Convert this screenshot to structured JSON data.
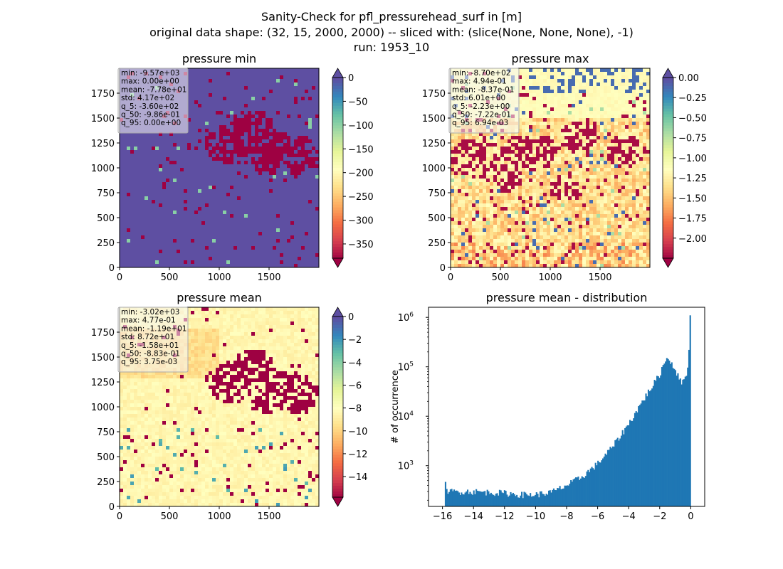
{
  "suptitle": {
    "line1": "Sanity-Check for pfl_pressurehead_surf in [m]",
    "line2": "original data shape: (32, 15, 2000, 2000) -- sliced with: (slice(None, None, None), -1)",
    "line3": "run: 1953_10"
  },
  "chart_data": [
    {
      "type": "heatmap",
      "title": "pressure min",
      "xlabel": "",
      "ylabel": "",
      "xlim": [
        0,
        2000
      ],
      "ylim": [
        0,
        2000
      ],
      "x_ticks": [
        "0",
        "500",
        "1000",
        "1500"
      ],
      "y_ticks": [
        "0",
        "250",
        "500",
        "750",
        "1000",
        "1250",
        "1500",
        "1750"
      ],
      "colormap": "Spectral",
      "colorbar": {
        "vmin": -380,
        "vmax": 0,
        "extend": "both",
        "ticks": [
          "0",
          "−50",
          "−100",
          "−150",
          "−200",
          "−250",
          "−300",
          "−350"
        ]
      },
      "stats": [
        "min: -9.57e+03",
        "max: 0.00e+00",
        "mean: -7.78e+01",
        "std: 4.17e+02",
        "q_5: -3.60e+02",
        "q_50: -9.86e-01",
        "q_95: 0.00e+00"
      ],
      "dominant_value": 0
    },
    {
      "type": "heatmap",
      "title": "pressure max",
      "xlabel": "",
      "ylabel": "",
      "xlim": [
        0,
        2000
      ],
      "ylim": [
        0,
        2000
      ],
      "x_ticks": [
        "0",
        "500",
        "1000",
        "1500"
      ],
      "y_ticks": [
        "0",
        "250",
        "500",
        "750",
        "1000",
        "1250",
        "1500",
        "1750"
      ],
      "colormap": "Spectral",
      "colorbar": {
        "vmin": -2.25,
        "vmax": 0.0,
        "extend": "both",
        "ticks": [
          "0.00",
          "−0.25",
          "−0.50",
          "−0.75",
          "−1.00",
          "−1.25",
          "−1.50",
          "−1.75",
          "−2.00"
        ]
      },
      "stats": [
        "min: -8.70e+02",
        "max: 4.94e-01",
        "mean: -8.37e-01",
        "std: 6.01e+00",
        "q_5: -2.23e+00",
        "q_50: -7.22e-01",
        "q_95: 6.94e-03"
      ]
    },
    {
      "type": "heatmap",
      "title": "pressure mean",
      "xlabel": "",
      "ylabel": "",
      "xlim": [
        0,
        2000
      ],
      "ylim": [
        0,
        2000
      ],
      "x_ticks": [
        "0",
        "500",
        "1000",
        "1500"
      ],
      "y_ticks": [
        "0",
        "250",
        "500",
        "750",
        "1000",
        "1250",
        "1500",
        "1750"
      ],
      "colormap": "Spectral",
      "colorbar": {
        "vmin": -15.8,
        "vmax": 0,
        "extend": "both",
        "ticks": [
          "0",
          "−2",
          "−4",
          "−6",
          "−8",
          "−10",
          "−12",
          "−14"
        ]
      },
      "stats": [
        "min: -3.02e+03",
        "max: 4.77e-01",
        "mean: -1.19e+01",
        "std: 8.72e+01",
        "q_5: -1.58e+01",
        "q_50: -8.83e-01",
        "q_95: 3.75e-03"
      ]
    },
    {
      "type": "bar",
      "title": "pressure mean - distribution",
      "xlabel": "",
      "ylabel": "# of occurrence",
      "xlim": [
        -16.9,
        0.9
      ],
      "ylim": [
        150,
        1600000
      ],
      "yscale": "log",
      "x_ticks": [
        "−16",
        "−14",
        "−12",
        "−10",
        "−8",
        "−6",
        "−4",
        "−2",
        "0"
      ],
      "y_ticks": [
        "10^3",
        "10^4",
        "10^5",
        "10^6"
      ],
      "color": "#1f77b4",
      "bin_range": [
        -15.85,
        0.0
      ],
      "bins": 200,
      "profile_x": [
        -16,
        -15,
        -14,
        -13,
        -12,
        -11,
        -10,
        -9,
        -8,
        -7,
        -6,
        -5,
        -4,
        -3,
        -2,
        -1.6,
        -1.3,
        -1.1,
        -0.9,
        -0.6,
        -0.4,
        -0.2,
        0
      ],
      "profile_y": [
        300,
        300,
        300,
        290,
        280,
        260,
        260,
        290,
        400,
        600,
        1100,
        2500,
        7000,
        23000,
        70000,
        150000,
        130000,
        100000,
        75000,
        45000,
        65000,
        85000,
        1100000
      ]
    }
  ]
}
